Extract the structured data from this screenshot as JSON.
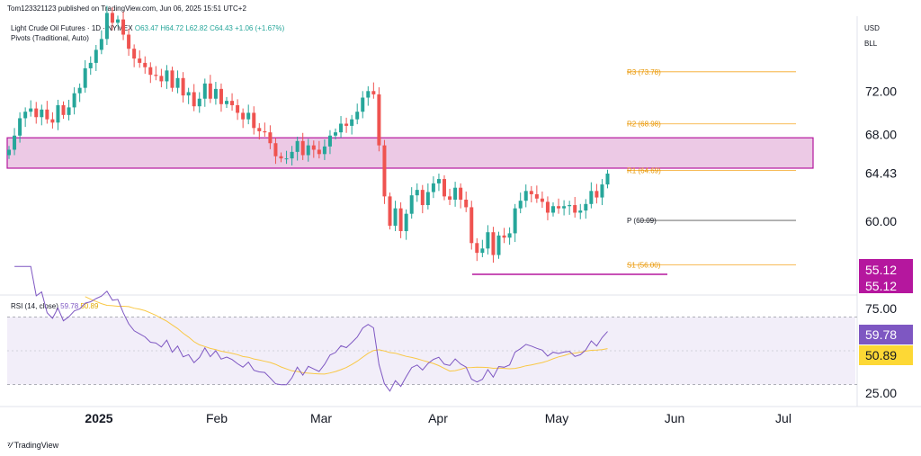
{
  "publisher": "Tom123321123 published on TradingView.com, Jun 06, 2025 15:51 UTC+2",
  "symbol_line": {
    "name": "Light Crude Oil Futures · 1D · NYMEX",
    "open": "O63.47",
    "high": "H64.72",
    "low": "L62.82",
    "close": "C64.43",
    "change": "+1.06 (+1.67%)"
  },
  "pivots_indicator": "Pivots (Traditional, Auto)",
  "currency": "USD",
  "unit": "BLL",
  "branding": "TradingView",
  "colors": {
    "up": "#26a69a",
    "down": "#ef5350",
    "zone_fill": "#e9bfe0",
    "zone_stroke": "#b5179e",
    "pivot_line": "#f5a623",
    "rsi_line": "#7e57c2",
    "rsi_ma": "#f9c846",
    "badge_magenta": "#b5179e",
    "badge_purple": "#7e57c2",
    "badge_yellow": "#fdd835"
  },
  "chart_data": [
    {
      "type": "candlestick",
      "title": "Light Crude Oil Futures · 1D · NYMEX",
      "ylim": [
        53.3,
        78.9
      ],
      "y_ticks": [
        "72.00",
        "68.00",
        "64.43",
        "60.00",
        "56.00"
      ],
      "x_tick_labels": [
        "2025",
        "Feb",
        "Mar",
        "Apr",
        "May",
        "Jun",
        "Jul"
      ],
      "last_price": 64.43,
      "support_line": 55.12,
      "support_labels": [
        "55.12",
        "55.12"
      ],
      "resistance_zone": [
        64.9,
        67.7
      ],
      "pivots": [
        {
          "label": "R3 (73.78)",
          "value": 73.78
        },
        {
          "label": "R2 (68.98)",
          "value": 68.98
        },
        {
          "label": "R1 (64.69)",
          "value": 64.69
        },
        {
          "label": "P (60.09)",
          "value": 60.09
        },
        {
          "label": "S1 (56.00)",
          "value": 56.0
        }
      ],
      "closes": [
        66.6,
        67.9,
        69.5,
        70.1,
        70.4,
        69.6,
        70.3,
        69.4,
        69.1,
        70.7,
        69.8,
        70.5,
        71.8,
        72.3,
        74.1,
        74.6,
        75.8,
        76.8,
        79.2,
        78.3,
        78.6,
        77.2,
        75.9,
        75.0,
        74.6,
        74.2,
        73.5,
        73.4,
        72.9,
        73.9,
        72.3,
        73.2,
        71.6,
        71.9,
        70.6,
        71.3,
        72.7,
        71.3,
        72.2,
        70.8,
        71.1,
        70.7,
        70.0,
        69.4,
        70.0,
        68.6,
        68.3,
        68.2,
        67.2,
        66.0,
        65.8,
        65.8,
        66.4,
        67.4,
        66.1,
        67.0,
        66.6,
        66.2,
        66.9,
        67.9,
        68.2,
        69.0,
        68.8,
        69.4,
        70.1,
        71.4,
        72.0,
        71.7,
        67.0,
        62.3,
        59.6,
        61.2,
        59.1,
        60.7,
        62.4,
        62.9,
        61.5,
        62.7,
        63.5,
        63.9,
        62.3,
        62.0,
        63.1,
        62.0,
        61.3,
        58.0,
        57.1,
        57.5,
        59.0,
        56.9,
        58.7,
        58.5,
        58.9,
        61.2,
        61.9,
        62.8,
        62.5,
        62.1,
        61.8,
        60.8,
        61.4,
        61.2,
        61.4,
        61.5,
        60.8,
        61.0,
        61.6,
        62.8,
        62.2,
        63.4,
        64.4
      ]
    },
    {
      "type": "line",
      "title": "RSI (14, close)",
      "series": [
        {
          "name": "RSI",
          "current": 59.78
        },
        {
          "name": "RSI-based MA",
          "current": 50.89
        }
      ],
      "ylim": [
        18,
        82
      ],
      "band": [
        30,
        70
      ],
      "y_ticks": [
        "75.00",
        "25.00"
      ],
      "current_labels": [
        "59.78",
        "50.89"
      ]
    }
  ]
}
